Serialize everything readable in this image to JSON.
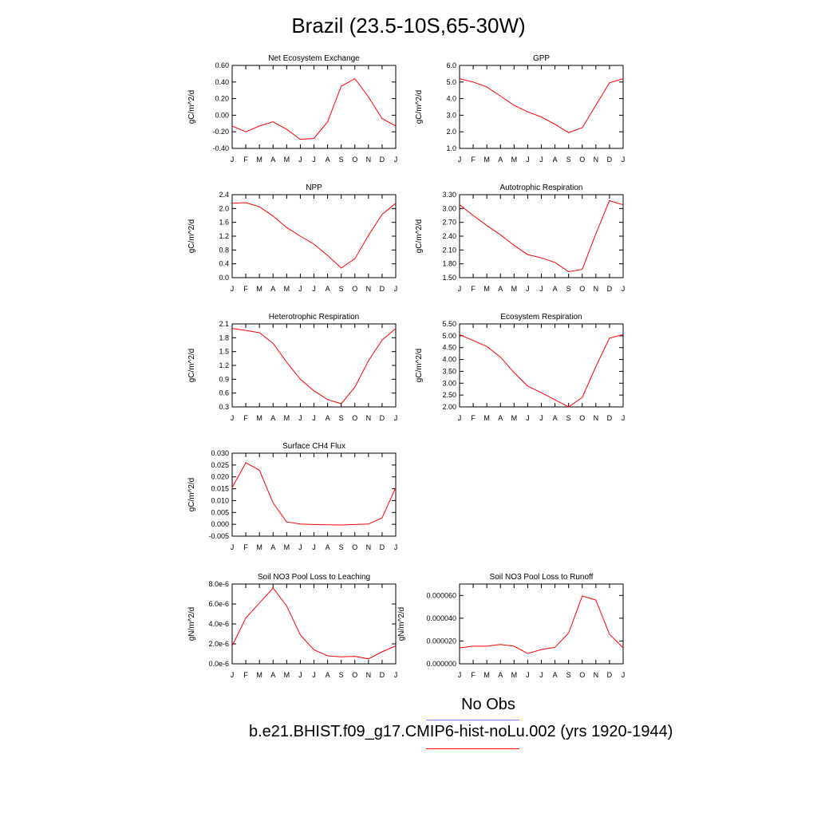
{
  "title": "Brazil (23.5-10S,65-30W)",
  "legend": {
    "obs_label": "No Obs",
    "obs_color": "#7f7fff",
    "model_label": "b.e21.BHIST.f09_g17.CMIP6-hist-noLu.002 (yrs 1920-1944)",
    "model_color": "#ff0000"
  },
  "chart_data": [
    {
      "type": "line",
      "title": "Net Ecosystem Exchange",
      "ylabel": "gC/m^2/d",
      "x": [
        "J",
        "F",
        "M",
        "A",
        "M",
        "J",
        "J",
        "A",
        "S",
        "O",
        "N",
        "D",
        "J"
      ],
      "ylim": [
        -0.4,
        0.6
      ],
      "yticks": [
        "0.60",
        "0.40",
        "0.20",
        "0.00",
        "-0.20",
        "-0.40"
      ],
      "series": [
        {
          "color": "#ff0000",
          "values": [
            -0.13,
            -0.2,
            -0.13,
            -0.08,
            -0.17,
            -0.29,
            -0.28,
            -0.08,
            0.35,
            0.44,
            0.22,
            -0.04,
            -0.13
          ]
        }
      ]
    },
    {
      "type": "line",
      "title": "GPP",
      "ylabel": "gC/m^2/d",
      "x": [
        "J",
        "F",
        "M",
        "A",
        "M",
        "J",
        "J",
        "A",
        "S",
        "O",
        "N",
        "D",
        "J"
      ],
      "ylim": [
        1.0,
        6.0
      ],
      "yticks": [
        "6.0",
        "5.0",
        "4.0",
        "3.0",
        "2.0",
        "1.0"
      ],
      "series": [
        {
          "color": "#ff0000",
          "values": [
            5.2,
            5.0,
            4.7,
            4.15,
            3.6,
            3.2,
            2.9,
            2.45,
            1.95,
            2.25,
            3.6,
            4.95,
            5.2
          ]
        }
      ]
    },
    {
      "type": "line",
      "title": "NPP",
      "ylabel": "gC/m^2/d",
      "x": [
        "J",
        "F",
        "M",
        "A",
        "M",
        "J",
        "J",
        "A",
        "S",
        "O",
        "N",
        "D",
        "J"
      ],
      "ylim": [
        0.0,
        2.4
      ],
      "yticks": [
        "2.4",
        "2.0",
        "1.6",
        "1.2",
        "0.8",
        "0.4",
        "0.0"
      ],
      "series": [
        {
          "color": "#ff0000",
          "values": [
            2.15,
            2.17,
            2.05,
            1.78,
            1.45,
            1.2,
            0.97,
            0.64,
            0.28,
            0.55,
            1.22,
            1.83,
            2.15
          ]
        }
      ]
    },
    {
      "type": "line",
      "title": "Autotrophic Respiration",
      "ylabel": "gC/m^2/d",
      "x": [
        "J",
        "F",
        "M",
        "A",
        "M",
        "J",
        "J",
        "A",
        "S",
        "O",
        "N",
        "D",
        "J"
      ],
      "ylim": [
        1.5,
        3.3
      ],
      "yticks": [
        "3.30",
        "3.00",
        "2.70",
        "2.40",
        "2.10",
        "1.80",
        "1.50"
      ],
      "series": [
        {
          "color": "#ff0000",
          "values": [
            3.08,
            2.85,
            2.63,
            2.43,
            2.2,
            2.0,
            1.93,
            1.83,
            1.63,
            1.68,
            2.45,
            3.17,
            3.08
          ]
        }
      ]
    },
    {
      "type": "line",
      "title": "Heterotrophic Respiration",
      "ylabel": "gC/m^2/d",
      "x": [
        "J",
        "F",
        "M",
        "A",
        "M",
        "J",
        "J",
        "A",
        "S",
        "O",
        "N",
        "D",
        "J"
      ],
      "ylim": [
        0.3,
        2.1
      ],
      "yticks": [
        "2.1",
        "1.8",
        "1.5",
        "1.2",
        "0.9",
        "0.6",
        "0.3"
      ],
      "series": [
        {
          "color": "#ff0000",
          "values": [
            2.0,
            1.96,
            1.91,
            1.68,
            1.27,
            0.9,
            0.65,
            0.46,
            0.37,
            0.73,
            1.3,
            1.75,
            2.0
          ]
        }
      ]
    },
    {
      "type": "line",
      "title": "Ecosystem Respiration",
      "ylabel": "gC/m^2/d",
      "x": [
        "J",
        "F",
        "M",
        "A",
        "M",
        "J",
        "J",
        "A",
        "S",
        "O",
        "N",
        "D",
        "J"
      ],
      "ylim": [
        2.0,
        5.5
      ],
      "yticks": [
        "5.50",
        "5.00",
        "4.50",
        "4.00",
        "3.50",
        "3.00",
        "2.50",
        "2.00"
      ],
      "series": [
        {
          "color": "#ff0000",
          "values": [
            5.05,
            4.8,
            4.55,
            4.1,
            3.45,
            2.88,
            2.6,
            2.3,
            2.0,
            2.4,
            3.7,
            4.9,
            5.05
          ]
        }
      ]
    },
    {
      "type": "line",
      "title": "Surface CH4 Flux",
      "ylabel": "gC/m^2/d",
      "x": [
        "J",
        "F",
        "M",
        "A",
        "M",
        "J",
        "J",
        "A",
        "S",
        "O",
        "N",
        "D",
        "J"
      ],
      "ylim": [
        -0.005,
        0.03
      ],
      "yticks": [
        "0.030",
        "0.025",
        "0.020",
        "0.015",
        "0.010",
        "0.005",
        "0.000",
        "-0.005"
      ],
      "series": [
        {
          "color": "#ff0000",
          "values": [
            0.0155,
            0.026,
            0.0228,
            0.009,
            0.001,
            0.0001,
            -0.0001,
            -0.0002,
            -0.0003,
            -0.0001,
            0.0001,
            0.0027,
            0.0155
          ]
        }
      ]
    },
    {
      "type": "line",
      "title": "Soil NO3 Pool Loss to Leaching",
      "ylabel": "gN/m^2/d",
      "x": [
        "J",
        "F",
        "M",
        "A",
        "M",
        "J",
        "J",
        "A",
        "S",
        "O",
        "N",
        "D",
        "J"
      ],
      "ylim": [
        0.0,
        8e-06
      ],
      "yticks": [
        "8.0e-6",
        "6.0e-6",
        "4.0e-6",
        "2.0e-6",
        "0.0e-6"
      ],
      "series": [
        {
          "color": "#ff0000",
          "values": [
            1.8e-06,
            4.6e-06,
            6.1e-06,
            7.6e-06,
            5.8e-06,
            2.9e-06,
            1.4e-06,
            8e-07,
            7e-07,
            7.5e-07,
            5e-07,
            1.2e-06,
            1.8e-06
          ]
        }
      ]
    },
    {
      "type": "line",
      "title": "Soil NO3 Pool Loss to Runoff",
      "ylabel": "gN/m^2/d",
      "x": [
        "J",
        "F",
        "M",
        "A",
        "M",
        "J",
        "J",
        "A",
        "S",
        "O",
        "N",
        "D",
        "J"
      ],
      "ylim": [
        0.0,
        7e-05
      ],
      "yticks": [
        "0.000060",
        "0.000040",
        "0.000020",
        "0.000000"
      ],
      "ytick_values": [
        6e-05,
        4e-05,
        2e-05,
        0.0
      ],
      "series": [
        {
          "color": "#ff0000",
          "values": [
            1.4e-05,
            1.55e-05,
            1.55e-05,
            1.7e-05,
            1.55e-05,
            9e-06,
            1.25e-05,
            1.45e-05,
            2.7e-05,
            5.95e-05,
            5.6e-05,
            2.6e-05,
            1.4e-05
          ]
        }
      ]
    }
  ]
}
